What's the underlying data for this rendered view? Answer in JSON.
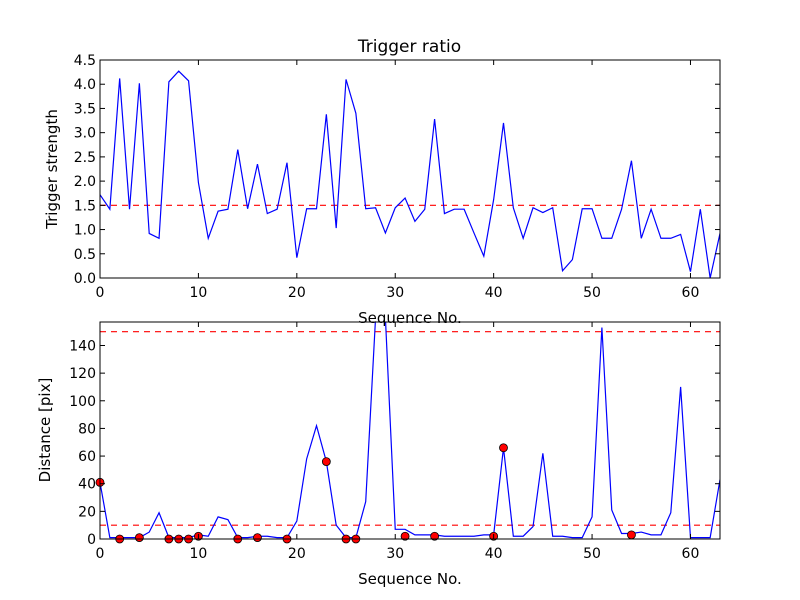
{
  "chart_data": [
    {
      "type": "line",
      "title": "Trigger ratio",
      "xlabel": "Sequence No.",
      "ylabel": "Trigger strength",
      "xlim": [
        0,
        63
      ],
      "ylim": [
        0.0,
        4.5
      ],
      "xticks": [
        0,
        10,
        20,
        30,
        40,
        50,
        60
      ],
      "xtick_labels": [
        "0",
        "10",
        "20",
        "30",
        "40",
        "50",
        "60"
      ],
      "yticks": [
        0.0,
        0.5,
        1.0,
        1.5,
        2.0,
        2.5,
        3.0,
        3.5,
        4.0,
        4.5
      ],
      "ytick_labels": [
        "0.0",
        "0.5",
        "1.0",
        "1.5",
        "2.0",
        "2.5",
        "3.0",
        "3.5",
        "4.0",
        "4.5"
      ],
      "grid": false,
      "line_color": "#0000ff",
      "threshold_color": "#ff0000",
      "thresholds": [
        1.5
      ],
      "series": [
        {
          "x": [
            0,
            1,
            2,
            3,
            4,
            5,
            6,
            7,
            8,
            9,
            10,
            11,
            12,
            13,
            14,
            15,
            16,
            17,
            18,
            19,
            20,
            21,
            22,
            23,
            24,
            25,
            26,
            27,
            28,
            29,
            30,
            31,
            32,
            33,
            34,
            35,
            36,
            37,
            38,
            39,
            40,
            41,
            42,
            43,
            44,
            45,
            46,
            47,
            48,
            49,
            50,
            51,
            52,
            53,
            54,
            55,
            56,
            57,
            58,
            59,
            60,
            61,
            62,
            63
          ],
          "values": [
            1.72,
            1.42,
            4.12,
            1.42,
            4.02,
            0.92,
            0.82,
            4.05,
            4.27,
            4.07,
            1.97,
            0.82,
            1.38,
            1.42,
            2.65,
            1.43,
            2.35,
            1.33,
            1.42,
            2.38,
            0.42,
            1.43,
            1.43,
            3.38,
            1.03,
            4.1,
            3.4,
            1.43,
            1.45,
            0.93,
            1.45,
            1.65,
            1.17,
            1.42,
            3.28,
            1.33,
            1.42,
            1.42,
            0.93,
            0.45,
            1.62,
            3.2,
            1.45,
            0.82,
            1.45,
            1.35,
            1.45,
            0.15,
            0.38,
            1.43,
            1.43,
            0.82,
            0.82,
            1.42,
            2.42,
            0.82,
            1.42,
            0.82,
            0.82,
            0.9,
            0.13,
            1.42,
            0.0,
            0.92
          ]
        }
      ]
    },
    {
      "type": "line",
      "title": "",
      "xlabel": "Sequence No.",
      "ylabel": "Distance [pix]",
      "xlim": [
        0,
        63
      ],
      "ylim": [
        0,
        157
      ],
      "xticks": [
        0,
        10,
        20,
        30,
        40,
        50,
        60
      ],
      "xtick_labels": [
        "0",
        "10",
        "20",
        "30",
        "40",
        "50",
        "60"
      ],
      "yticks": [
        0,
        20,
        40,
        60,
        80,
        100,
        120,
        140
      ],
      "ytick_labels": [
        "0",
        "20",
        "40",
        "60",
        "80",
        "100",
        "120",
        "140"
      ],
      "grid": false,
      "line_color": "#0000ff",
      "threshold_color": "#ff0000",
      "marker_color": "#ff0000",
      "thresholds": [
        150,
        10
      ],
      "series": [
        {
          "x": [
            0,
            1,
            2,
            3,
            4,
            5,
            6,
            7,
            8,
            9,
            10,
            11,
            12,
            13,
            14,
            15,
            16,
            17,
            18,
            19,
            20,
            21,
            22,
            23,
            24,
            25,
            26,
            27,
            28,
            29,
            30,
            31,
            32,
            33,
            34,
            35,
            36,
            37,
            38,
            39,
            40,
            41,
            42,
            43,
            44,
            45,
            46,
            47,
            48,
            49,
            50,
            51,
            52,
            53,
            54,
            55,
            56,
            57,
            58,
            59,
            60,
            61,
            62,
            63
          ],
          "values": [
            41,
            1,
            1,
            1,
            1,
            5,
            19,
            1,
            1,
            1,
            3,
            2,
            16,
            14,
            1,
            1,
            2,
            2,
            1,
            1,
            13,
            58,
            82,
            56,
            10,
            1,
            1,
            27,
            160,
            160,
            7,
            7,
            3,
            3,
            3,
            2,
            2,
            2,
            2,
            3,
            3,
            66,
            2,
            2,
            9,
            62,
            2,
            2,
            1,
            1,
            16,
            153,
            21,
            4,
            4,
            5,
            3,
            3,
            19,
            110,
            1,
            1,
            1,
            43
          ]
        }
      ],
      "markers": {
        "x": [
          0,
          2,
          4,
          7,
          8,
          9,
          10,
          14,
          16,
          19,
          23,
          25,
          26,
          31,
          34,
          40,
          41,
          54
        ],
        "values": [
          41,
          0,
          1,
          0,
          0,
          0,
          2,
          0,
          1,
          0,
          56,
          0,
          0,
          2,
          2,
          2,
          66,
          3
        ]
      }
    }
  ]
}
